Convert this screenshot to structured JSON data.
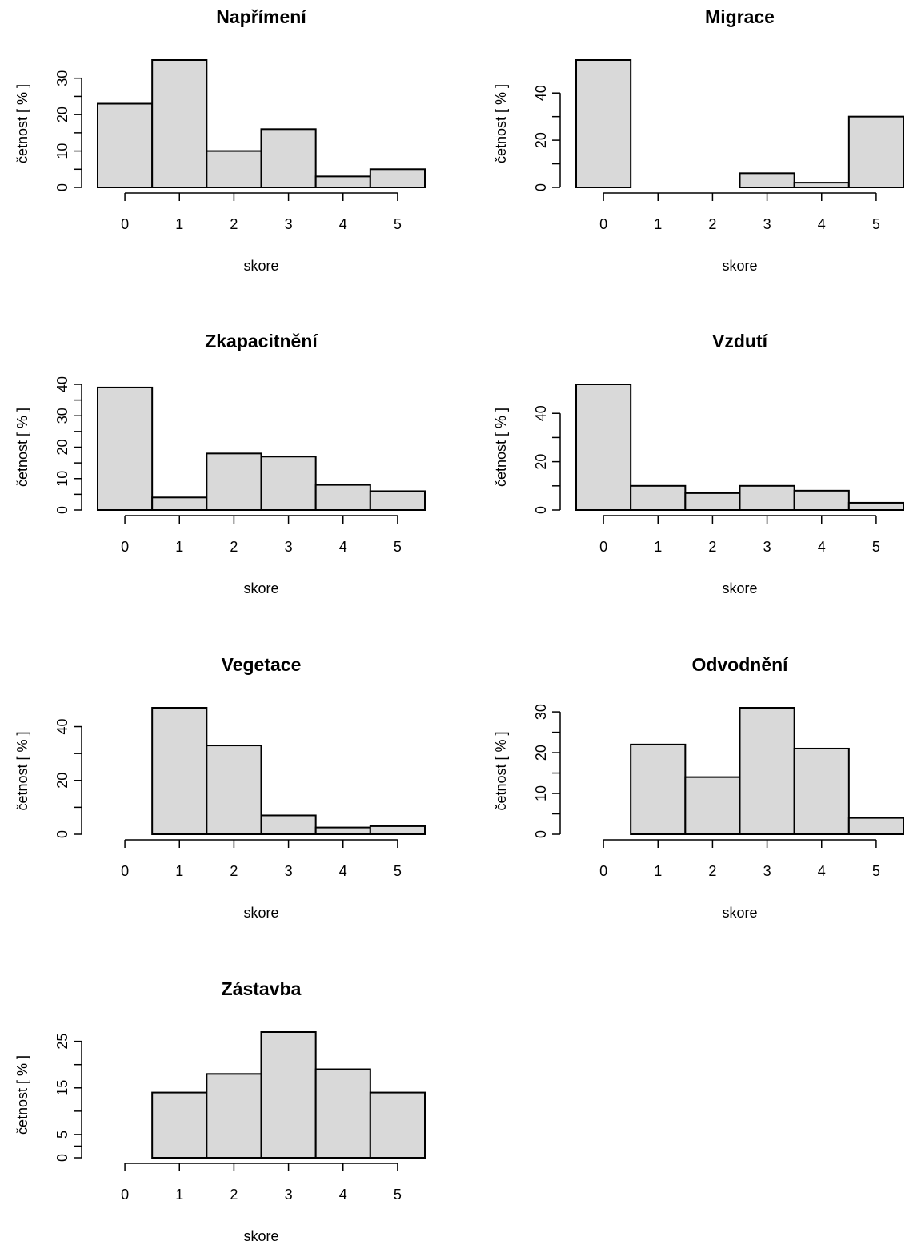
{
  "chart_data": [
    {
      "type": "bar",
      "title": "Napřímení",
      "xlabel": "skore",
      "ylabel": "četnost [ % ]",
      "categories": [
        "0",
        "1",
        "2",
        "3",
        "4",
        "5"
      ],
      "values": [
        23,
        35,
        10,
        16,
        3,
        5
      ],
      "yticks": [
        0,
        10,
        20,
        30
      ],
      "ylim": [
        0,
        35
      ],
      "grid": false
    },
    {
      "type": "bar",
      "title": "Migrace",
      "xlabel": "skore",
      "ylabel": "četnost [ % ]",
      "categories": [
        "0",
        "1",
        "2",
        "3",
        "4",
        "5"
      ],
      "values": [
        54,
        0,
        0,
        6,
        2,
        30
      ],
      "yticks": [
        0,
        20,
        40
      ],
      "ylim": [
        0,
        54
      ],
      "grid": false
    },
    {
      "type": "bar",
      "title": "Zkapacitnění",
      "xlabel": "skore",
      "ylabel": "četnost [ % ]",
      "categories": [
        "0",
        "1",
        "2",
        "3",
        "4",
        "5"
      ],
      "values": [
        39,
        4,
        18,
        17,
        8,
        6
      ],
      "yticks": [
        0,
        10,
        20,
        30,
        40
      ],
      "ylim": [
        0,
        40
      ],
      "grid": false
    },
    {
      "type": "bar",
      "title": "Vzdutí",
      "xlabel": "skore",
      "ylabel": "četnost [ % ]",
      "categories": [
        "0",
        "1",
        "2",
        "3",
        "4",
        "5"
      ],
      "values": [
        52,
        10,
        7,
        10,
        8,
        3
      ],
      "yticks": [
        0,
        20,
        40
      ],
      "ylim": [
        0,
        52
      ],
      "grid": false
    },
    {
      "type": "bar",
      "title": "Vegetace",
      "xlabel": "skore",
      "ylabel": "četnost [ % ]",
      "categories": [
        "0",
        "1",
        "2",
        "3",
        "4",
        "5"
      ],
      "values": [
        0,
        47,
        33,
        7,
        2.5,
        3
      ],
      "yticks": [
        0,
        20,
        40
      ],
      "ylim": [
        0,
        47
      ],
      "grid": false
    },
    {
      "type": "bar",
      "title": "Odvodnění",
      "xlabel": "skore",
      "ylabel": "četnost [ % ]",
      "categories": [
        "0",
        "1",
        "2",
        "3",
        "4",
        "5"
      ],
      "values": [
        0,
        22,
        14,
        31,
        21,
        4
      ],
      "yticks": [
        0,
        10,
        20,
        30
      ],
      "ylim": [
        0,
        31
      ],
      "grid": false
    },
    {
      "type": "bar",
      "title": "Zástavba",
      "xlabel": "skore",
      "ylabel": "četnost [ % ]",
      "categories": [
        "0",
        "1",
        "2",
        "3",
        "4",
        "5"
      ],
      "values": [
        0,
        14,
        18,
        27,
        19,
        14
      ],
      "yticks": [
        0,
        5,
        15,
        25
      ],
      "ylim": [
        0,
        27
      ],
      "grid": false
    }
  ]
}
